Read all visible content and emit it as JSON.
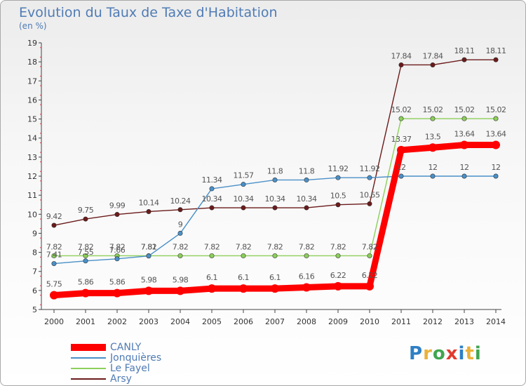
{
  "header": {
    "title": "Evolution du Taux de Taxe d'Habitation",
    "unit": "(en %)"
  },
  "chart_data": {
    "type": "line",
    "title": "Evolution du Taux de Taxe d'Habitation",
    "ylabel": "(en %)",
    "xlabel": "",
    "x": [
      "2000",
      "2001",
      "2002",
      "2003",
      "2004",
      "2005",
      "2006",
      "2007",
      "2008",
      "2009",
      "2010",
      "2011",
      "2012",
      "2013",
      "2014"
    ],
    "ylim": [
      5,
      19
    ],
    "yticks": [
      "5",
      "6",
      "7",
      "8",
      "9",
      "10",
      "11",
      "12",
      "13",
      "14",
      "15",
      "16",
      "17",
      "18",
      "19"
    ],
    "grid": false,
    "legend_position": "bottom-left",
    "series": [
      {
        "name": "CANLY",
        "color": "#ff0000",
        "values": [
          5.75,
          5.86,
          5.86,
          5.98,
          5.98,
          6.1,
          6.1,
          6.1,
          6.16,
          6.22,
          6.22,
          13.37,
          13.5,
          13.64,
          13.64
        ],
        "labels": [
          "5.75",
          "5.86",
          "5.86",
          "5.98",
          "5.98",
          "6.1",
          "6.1",
          "6.1",
          "6.16",
          "6.22",
          "6.22",
          "13.37",
          "13.5",
          "13.64",
          "13.64"
        ]
      },
      {
        "name": "Jonquières",
        "color": "#4a90c8",
        "values": [
          7.41,
          7.55,
          7.66,
          7.81,
          9,
          11.34,
          11.57,
          11.8,
          11.8,
          11.92,
          11.92,
          12,
          12,
          12,
          12
        ],
        "labels": [
          "7.41",
          "7.55",
          "7.66",
          "7.81",
          "9",
          "11.34",
          "11.57",
          "11.8",
          "11.8",
          "11.92",
          "11.92",
          "12",
          "12",
          "12",
          "12"
        ]
      },
      {
        "name": "Le Fayel",
        "color": "#8ccf5a",
        "values": [
          7.82,
          7.82,
          7.82,
          7.82,
          7.82,
          7.82,
          7.82,
          7.82,
          7.82,
          7.82,
          7.82,
          15.02,
          15.02,
          15.02,
          15.02
        ],
        "labels": [
          "7.82",
          "7.82",
          "7.82",
          "7.82",
          "7.82",
          "7.82",
          "7.82",
          "7.82",
          "7.82",
          "7.82",
          "7.82",
          "15.02",
          "15.02",
          "15.02",
          "15.02"
        ]
      },
      {
        "name": "Arsy",
        "color": "#6b1a1a",
        "values": [
          9.42,
          9.75,
          9.99,
          10.14,
          10.24,
          10.34,
          10.34,
          10.34,
          10.34,
          10.5,
          10.55,
          17.84,
          17.84,
          18.11,
          18.11
        ],
        "labels": [
          "9.42",
          "9.75",
          "9.99",
          "10.14",
          "10.24",
          "10.34",
          "10.34",
          "10.34",
          "10.34",
          "10.5",
          "10.55",
          "17.84",
          "17.84",
          "18.11",
          "18.11"
        ]
      }
    ]
  },
  "logo": {
    "text": "Proxiti",
    "colors": [
      "#2e7fc4",
      "#e9b23a",
      "#3fa64f",
      "#e23a2e",
      "#2e7fc4",
      "#e9b23a",
      "#3fa64f"
    ]
  }
}
